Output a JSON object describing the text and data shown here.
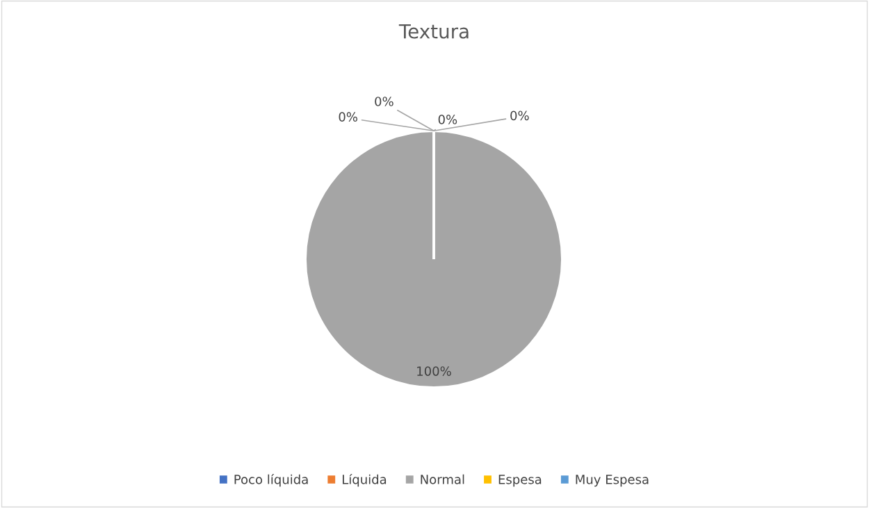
{
  "chart_data": {
    "type": "pie",
    "title": "Textura",
    "categories": [
      "Poco líquida",
      "Líquida",
      "Normal",
      "Espesa",
      "Muy Espesa"
    ],
    "values": [
      0,
      0,
      100,
      0,
      0
    ],
    "colors": [
      "#4472c4",
      "#ed7d31",
      "#a5a5a5",
      "#ffc000",
      "#5b9bd5"
    ],
    "value_labels": [
      "0%",
      "0%",
      "100%",
      "0%",
      "0%"
    ],
    "legend": "bottom"
  }
}
